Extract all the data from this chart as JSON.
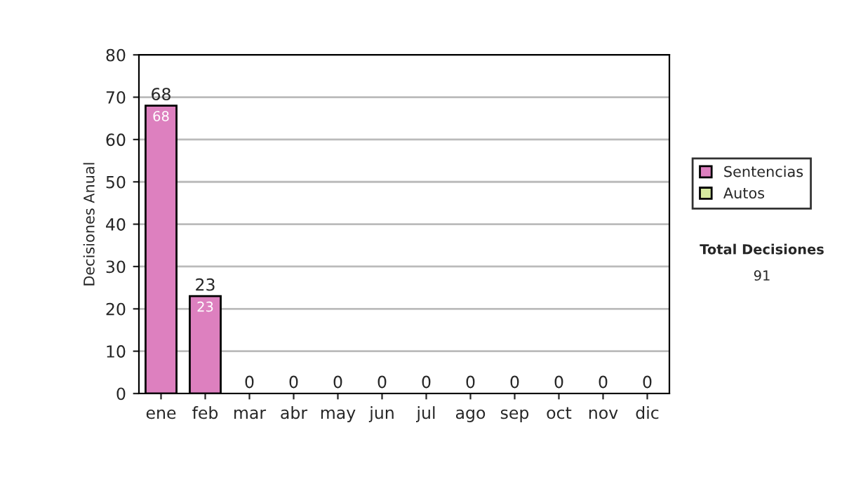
{
  "chart_data": {
    "type": "bar",
    "stacked": true,
    "ylabel": "Decisiones Anual",
    "categories": [
      "ene",
      "feb",
      "mar",
      "abr",
      "may",
      "jun",
      "jul",
      "ago",
      "sep",
      "oct",
      "nov",
      "dic"
    ],
    "series": [
      {
        "name": "Sentencias",
        "color": "#dd80bf",
        "values": [
          68,
          23,
          0,
          0,
          0,
          0,
          0,
          0,
          0,
          0,
          0,
          0
        ],
        "value_labels": [
          "68",
          "23",
          null,
          null,
          null,
          null,
          null,
          null,
          null,
          null,
          null,
          null
        ]
      },
      {
        "name": "Autos",
        "color": "#d6eaa0",
        "values": [
          0,
          0,
          0,
          0,
          0,
          0,
          0,
          0,
          0,
          0,
          0,
          0
        ]
      }
    ],
    "totals": [
      "68",
      "23",
      "0",
      "0",
      "0",
      "0",
      "0",
      "0",
      "0",
      "0",
      "0",
      "0"
    ],
    "ylim": [
      0,
      80
    ],
    "yticks": [
      0,
      10,
      20,
      30,
      40,
      50,
      60,
      70,
      80
    ],
    "grid": "y",
    "legend": "right",
    "annotations": [
      "Total Decisiones",
      "91"
    ]
  }
}
